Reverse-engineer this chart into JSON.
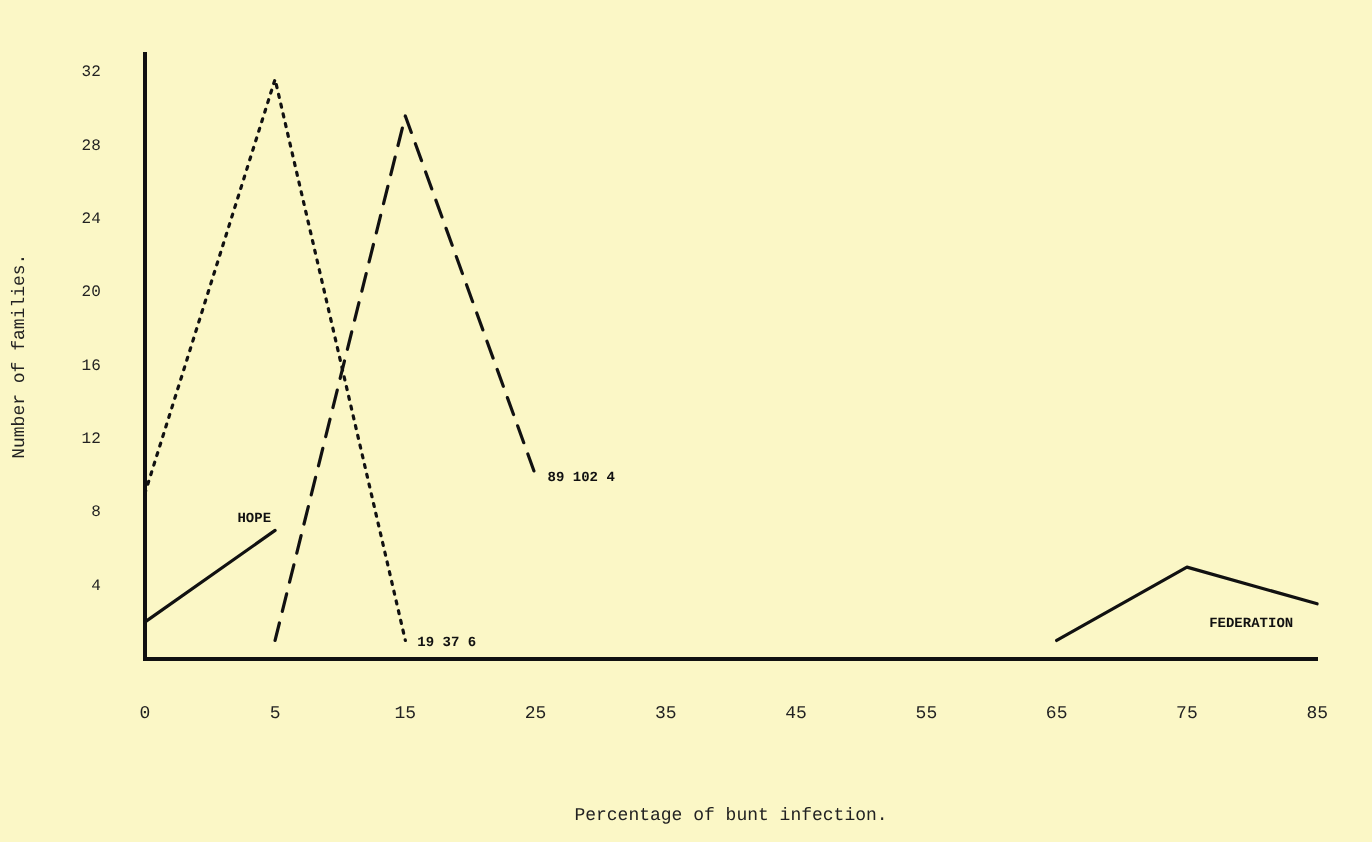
{
  "chart_data": {
    "type": "line",
    "xlabel": "Percentage of bunt infection.",
    "ylabel": "Number of families.",
    "categories": [
      "0",
      "5",
      "15",
      "25",
      "35",
      "45",
      "55",
      "65",
      "75",
      "85"
    ],
    "series": [
      {
        "name": "HOPE",
        "color": "#111111",
        "line_style": "solid",
        "values": [
          2,
          7,
          null,
          null,
          null,
          null,
          null,
          null,
          null,
          null
        ]
      },
      {
        "name": "19 37 6",
        "color": "#111111",
        "line_style": "dotted",
        "values": [
          9,
          31.6,
          1,
          null,
          null,
          null,
          null,
          null,
          null,
          null
        ]
      },
      {
        "name": "89 102 4",
        "color": "#111111",
        "line_style": "dashed",
        "values": [
          null,
          1,
          29.6,
          10,
          null,
          null,
          null,
          null,
          null,
          null
        ]
      },
      {
        "name": "FEDERATION",
        "color": "#111111",
        "line_style": "solid",
        "values": [
          null,
          null,
          null,
          null,
          null,
          null,
          null,
          1,
          5,
          3
        ]
      }
    ],
    "ylim": [
      0,
      33
    ],
    "yticks": [
      4,
      8,
      12,
      16,
      20,
      24,
      28,
      32
    ],
    "grid": false,
    "legend": false,
    "marker": "none"
  }
}
